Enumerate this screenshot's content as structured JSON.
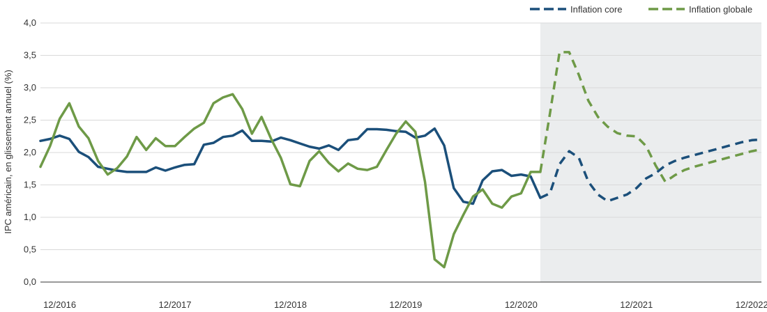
{
  "chart_data": {
    "type": "line",
    "title": "",
    "xlabel": "",
    "ylabel": "IPC américain, en glissement annuel (%)",
    "ylim": [
      0,
      4
    ],
    "y_ticks": [
      "0,0",
      "0,5",
      "1,0",
      "1,5",
      "2,0",
      "2,5",
      "3,0",
      "3,5",
      "4,0"
    ],
    "x_ticks": [
      "12/2016",
      "12/2017",
      "12/2018",
      "12/2019",
      "12/2020",
      "12/2021",
      "12/2022"
    ],
    "x_range": [
      "2016-10",
      "2023-01"
    ],
    "grid": "horizontal",
    "legend": "top-right",
    "forecast_region": {
      "start": "2021-02",
      "end": "2023-01",
      "color": "#ebedee"
    },
    "series": [
      {
        "name": "Inflation core",
        "color": "#1b4f7a",
        "actual": {
          "x": [
            "2016-10",
            "2016-11",
            "2016-12",
            "2017-01",
            "2017-02",
            "2017-03",
            "2017-04",
            "2017-05",
            "2017-06",
            "2017-07",
            "2017-08",
            "2017-09",
            "2017-10",
            "2017-11",
            "2017-12",
            "2018-01",
            "2018-02",
            "2018-03",
            "2018-04",
            "2018-05",
            "2018-06",
            "2018-07",
            "2018-08",
            "2018-09",
            "2018-10",
            "2018-11",
            "2018-12",
            "2019-01",
            "2019-02",
            "2019-03",
            "2019-04",
            "2019-05",
            "2019-06",
            "2019-07",
            "2019-08",
            "2019-09",
            "2019-10",
            "2019-11",
            "2019-12",
            "2020-01",
            "2020-02",
            "2020-03",
            "2020-04",
            "2020-05",
            "2020-06",
            "2020-07",
            "2020-08",
            "2020-09",
            "2020-10",
            "2020-11",
            "2020-12",
            "2021-01",
            "2021-02"
          ],
          "y": [
            2.18,
            2.21,
            2.26,
            2.21,
            2.01,
            1.93,
            1.78,
            1.75,
            1.72,
            1.7,
            1.7,
            1.7,
            1.77,
            1.72,
            1.77,
            1.81,
            1.82,
            2.12,
            2.15,
            2.24,
            2.26,
            2.34,
            2.18,
            2.18,
            2.17,
            2.23,
            2.19,
            2.14,
            2.09,
            2.06,
            2.11,
            2.04,
            2.19,
            2.21,
            2.36,
            2.36,
            2.35,
            2.33,
            2.32,
            2.23,
            2.26,
            2.37,
            2.11,
            1.45,
            1.24,
            1.21,
            1.57,
            1.71,
            1.73,
            1.64,
            1.66,
            1.63,
            1.3
          ]
        },
        "forecast": {
          "x": [
            "2021-02",
            "2021-03",
            "2021-04",
            "2021-05",
            "2021-06",
            "2021-07",
            "2021-08",
            "2021-09",
            "2021-10",
            "2021-11",
            "2021-12",
            "2022-01",
            "2022-02",
            "2022-03",
            "2022-04",
            "2022-05",
            "2022-06",
            "2022-07",
            "2022-08",
            "2022-09",
            "2022-10",
            "2022-11",
            "2022-12",
            "2023-01"
          ],
          "y": [
            1.3,
            1.37,
            1.82,
            2.02,
            1.92,
            1.55,
            1.35,
            1.25,
            1.3,
            1.35,
            1.45,
            1.6,
            1.68,
            1.8,
            1.87,
            1.92,
            1.96,
            2.0,
            2.04,
            2.08,
            2.12,
            2.16,
            2.19,
            2.2
          ]
        }
      },
      {
        "name": "Inflation globale",
        "color": "#6e9a47",
        "actual": {
          "x": [
            "2016-10",
            "2016-11",
            "2016-12",
            "2017-01",
            "2017-02",
            "2017-03",
            "2017-04",
            "2017-05",
            "2017-06",
            "2017-07",
            "2017-08",
            "2017-09",
            "2017-10",
            "2017-11",
            "2017-12",
            "2018-01",
            "2018-02",
            "2018-03",
            "2018-04",
            "2018-05",
            "2018-06",
            "2018-07",
            "2018-08",
            "2018-09",
            "2018-10",
            "2018-11",
            "2018-12",
            "2019-01",
            "2019-02",
            "2019-03",
            "2019-04",
            "2019-05",
            "2019-06",
            "2019-07",
            "2019-08",
            "2019-09",
            "2019-10",
            "2019-11",
            "2019-12",
            "2020-01",
            "2020-02",
            "2020-03",
            "2020-04",
            "2020-05",
            "2020-06",
            "2020-07",
            "2020-08",
            "2020-09",
            "2020-10",
            "2020-11",
            "2020-12",
            "2021-01",
            "2021-02"
          ],
          "y": [
            1.78,
            2.1,
            2.52,
            2.76,
            2.4,
            2.22,
            1.87,
            1.66,
            1.76,
            1.94,
            2.24,
            2.04,
            2.22,
            2.1,
            2.1,
            2.24,
            2.37,
            2.46,
            2.76,
            2.85,
            2.9,
            2.67,
            2.29,
            2.55,
            2.21,
            1.92,
            1.51,
            1.48,
            1.87,
            2.02,
            1.84,
            1.71,
            1.83,
            1.75,
            1.73,
            1.78,
            2.04,
            2.29,
            2.48,
            2.32,
            1.55,
            0.35,
            0.23,
            0.74,
            1.04,
            1.32,
            1.43,
            1.21,
            1.15,
            1.32,
            1.37,
            1.7,
            1.7
          ]
        },
        "forecast": {
          "x": [
            "2021-02",
            "2021-03",
            "2021-04",
            "2021-05",
            "2021-06",
            "2021-07",
            "2021-08",
            "2021-09",
            "2021-10",
            "2021-11",
            "2021-12",
            "2022-01",
            "2022-02",
            "2022-03",
            "2022-04",
            "2022-05",
            "2022-06",
            "2022-07",
            "2022-08",
            "2022-09",
            "2022-10",
            "2022-11",
            "2022-12",
            "2023-01"
          ],
          "y": [
            1.7,
            2.6,
            3.55,
            3.55,
            3.2,
            2.8,
            2.55,
            2.4,
            2.3,
            2.26,
            2.25,
            2.1,
            1.8,
            1.55,
            1.65,
            1.73,
            1.78,
            1.82,
            1.86,
            1.9,
            1.94,
            1.98,
            2.02,
            2.05
          ]
        }
      }
    ]
  }
}
